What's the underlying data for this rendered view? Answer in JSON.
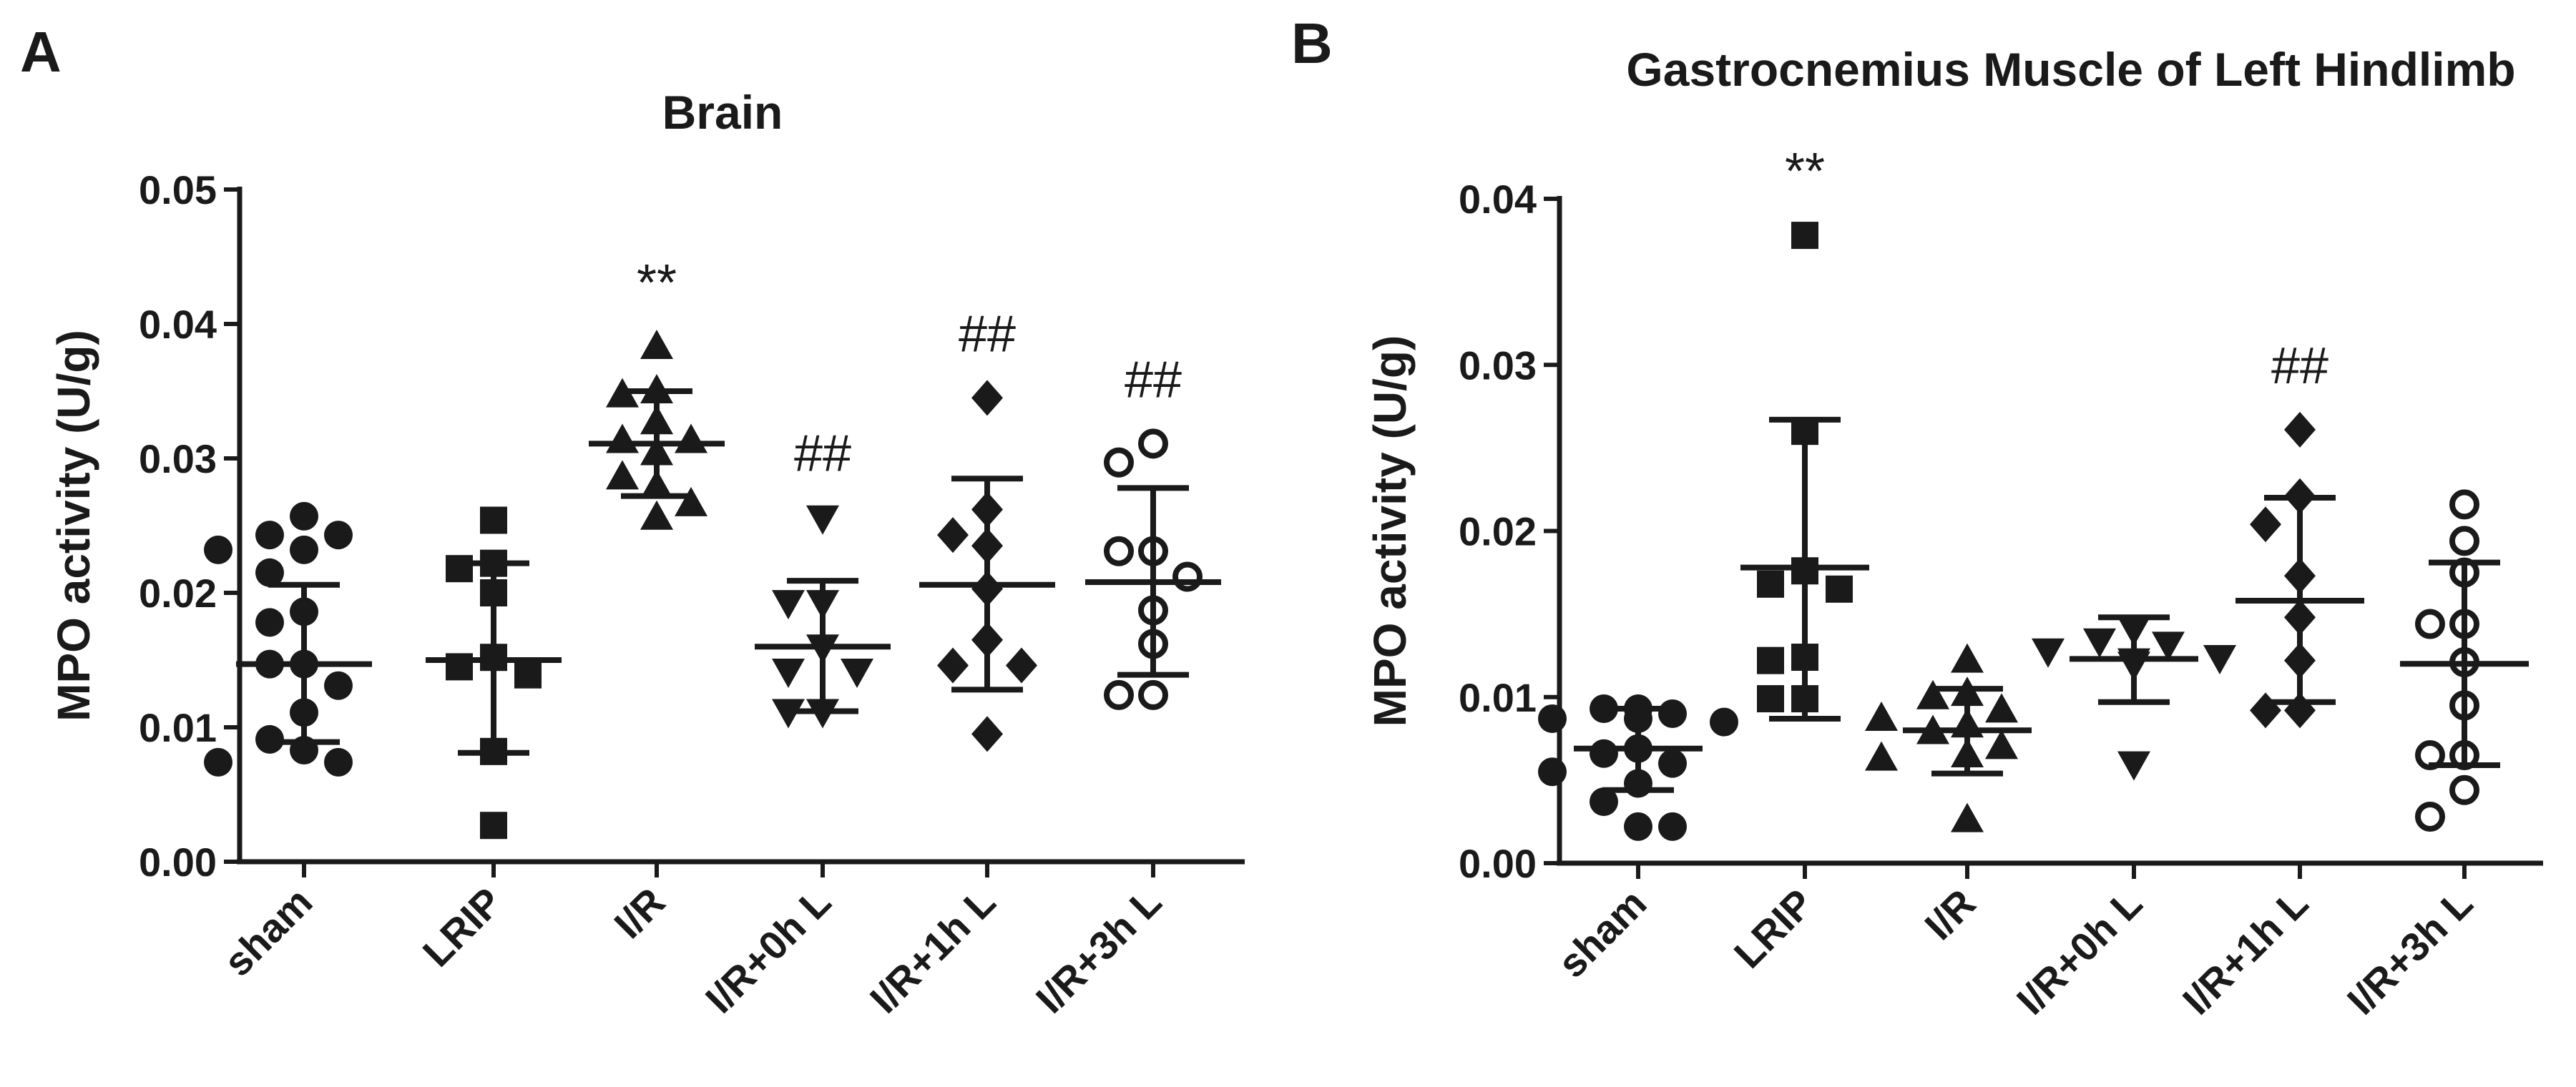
{
  "chart_data": [
    {
      "type": "scatter",
      "panel_label": "A",
      "title": "Brain",
      "ylabel": "MPO activity (U/g)",
      "xlabel": "",
      "ylim": [
        0,
        0.05
      ],
      "yticks": [
        0.0,
        0.01,
        0.02,
        0.03,
        0.04,
        0.05
      ],
      "ytick_labels": [
        "0.00",
        "0.01",
        "0.02",
        "0.03",
        "0.04",
        "0.05"
      ],
      "grid": false,
      "groups": [
        {
          "name": "sham",
          "marker": "circle",
          "filled": true,
          "mean": 0.0147,
          "sd_low": 0.0089,
          "sd_high": 0.0206,
          "annotation": "",
          "points": [
            0.0257,
            0.0243,
            0.0243,
            0.0232,
            0.0232,
            0.0215,
            0.0186,
            0.0178,
            0.0147,
            0.0147,
            0.0131,
            0.0111,
            0.0091,
            0.0083,
            0.0074,
            0.0074
          ]
        },
        {
          "name": "LRIP",
          "marker": "square",
          "filled": true,
          "mean": 0.015,
          "sd_low": 0.0081,
          "sd_high": 0.0222,
          "annotation": "",
          "points": [
            0.0254,
            0.0222,
            0.0218,
            0.02,
            0.0152,
            0.0145,
            0.0139,
            0.0082,
            0.0027
          ]
        },
        {
          "name": "I/R",
          "marker": "triangle-up",
          "filled": true,
          "mean": 0.0311,
          "sd_low": 0.0272,
          "sd_high": 0.035,
          "annotation": "**",
          "points": [
            0.0383,
            0.035,
            0.0347,
            0.0327,
            0.0313,
            0.0313,
            0.0304,
            0.0286,
            0.0279,
            0.0266,
            0.0256
          ]
        },
        {
          "name": "I/R+0h L",
          "marker": "triangle-down",
          "filled": true,
          "mean": 0.016,
          "sd_low": 0.0112,
          "sd_high": 0.0209,
          "annotation": "##",
          "points": [
            0.0256,
            0.0193,
            0.0193,
            0.016,
            0.0142,
            0.0142,
            0.0112,
            0.0112
          ]
        },
        {
          "name": "I/R+1h L",
          "marker": "diamond",
          "filled": true,
          "mean": 0.0206,
          "sd_low": 0.0128,
          "sd_high": 0.0285,
          "annotation": "##",
          "points": [
            0.0345,
            0.0262,
            0.0243,
            0.0235,
            0.0203,
            0.0165,
            0.0146,
            0.0146,
            0.0095
          ]
        },
        {
          "name": "I/R+3h L",
          "marker": "circle",
          "filled": false,
          "mean": 0.0208,
          "sd_low": 0.0139,
          "sd_high": 0.0278,
          "annotation": "##",
          "points": [
            0.0311,
            0.0297,
            0.0231,
            0.0231,
            0.0212,
            0.0187,
            0.0162,
            0.0124,
            0.0124
          ]
        }
      ]
    },
    {
      "type": "scatter",
      "panel_label": "B",
      "title": "Gastrocnemius Muscle of Left Hindlimb",
      "ylabel": "MPO activity (U/g)",
      "xlabel": "",
      "ylim": [
        0,
        0.04
      ],
      "yticks": [
        0.0,
        0.01,
        0.02,
        0.03,
        0.04
      ],
      "ytick_labels": [
        "0.00",
        "0.01",
        "0.02",
        "0.03",
        "0.04"
      ],
      "grid": false,
      "groups": [
        {
          "name": "sham",
          "marker": "circle",
          "filled": true,
          "mean": 0.0069,
          "sd_low": 0.0044,
          "sd_high": 0.0093,
          "annotation": "",
          "points": [
            0.0093,
            0.0093,
            0.009,
            0.0087,
            0.0085,
            0.0087,
            0.0069,
            0.0066,
            0.006,
            0.0055,
            0.0048,
            0.0037,
            0.0022,
            0.0022
          ]
        },
        {
          "name": "LRIP",
          "marker": "square",
          "filled": true,
          "mean": 0.0178,
          "sd_low": 0.0087,
          "sd_high": 0.0267,
          "annotation": "**",
          "points": [
            0.0378,
            0.026,
            0.0176,
            0.0168,
            0.0165,
            0.0124,
            0.0122,
            0.0099,
            0.0099
          ]
        },
        {
          "name": "I/R",
          "marker": "triangle-up",
          "filled": true,
          "mean": 0.008,
          "sd_low": 0.0054,
          "sd_high": 0.0105,
          "annotation": "",
          "points": [
            0.0122,
            0.0102,
            0.01,
            0.0092,
            0.0087,
            0.0083,
            0.0079,
            0.007,
            0.0065,
            0.0063,
            0.0026
          ]
        },
        {
          "name": "I/R+0h L",
          "marker": "triangle-down",
          "filled": true,
          "mean": 0.0123,
          "sd_low": 0.0097,
          "sd_high": 0.0148,
          "annotation": "",
          "points": [
            0.0141,
            0.0134,
            0.0132,
            0.0128,
            0.0124,
            0.0122,
            0.012,
            0.006
          ]
        },
        {
          "name": "I/R+1h L",
          "marker": "diamond",
          "filled": true,
          "mean": 0.0158,
          "sd_low": 0.0097,
          "sd_high": 0.022,
          "annotation": "##",
          "points": [
            0.0261,
            0.0221,
            0.0204,
            0.0173,
            0.0148,
            0.0122,
            0.0092,
            0.0092
          ]
        },
        {
          "name": "I/R+3h L",
          "marker": "circle",
          "filled": false,
          "mean": 0.012,
          "sd_low": 0.0059,
          "sd_high": 0.0181,
          "annotation": "",
          "points": [
            0.0216,
            0.0194,
            0.0175,
            0.0144,
            0.0144,
            0.0121,
            0.0095,
            0.0065,
            0.0065,
            0.0044,
            0.0028
          ]
        }
      ]
    }
  ]
}
